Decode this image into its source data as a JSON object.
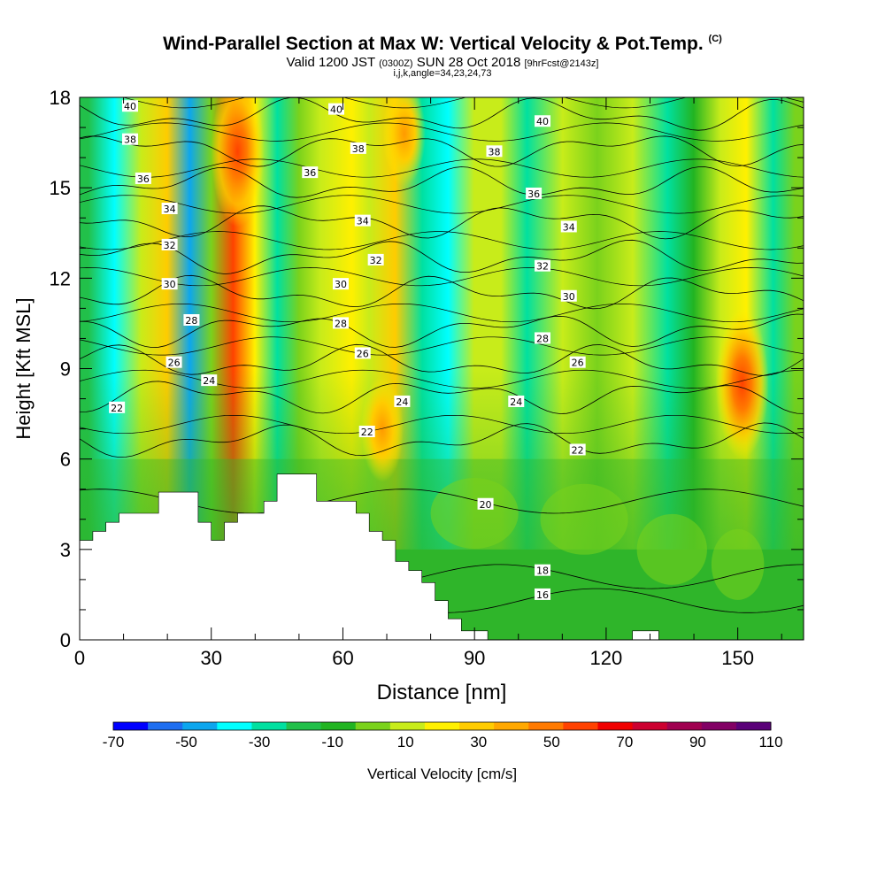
{
  "header": {
    "title": "Wind-Parallel Section at Max W: Vertical Velocity & Pot.Temp.",
    "title_units": "(C)",
    "valid_main_1": "Valid 1200 JST",
    "valid_utc": "(0300Z)",
    "valid_main_2": "SUN 28 Oct 2018",
    "forecast": "[9hrFcst@2143z]",
    "indices": "i,j,k,angle=34,23,24,73"
  },
  "chart_data": {
    "type": "heatmap",
    "xlabel": "Distance [nm]",
    "ylabel": "Height [Kft MSL]",
    "xlim": [
      0,
      165
    ],
    "ylim": [
      0,
      18
    ],
    "x_ticks": [
      0,
      30,
      60,
      90,
      120,
      150
    ],
    "x_ticklabels": [
      "0",
      "30",
      "60",
      "90",
      "120",
      "150"
    ],
    "y_ticks": [
      0,
      3,
      6,
      9,
      12,
      15,
      18
    ],
    "y_ticklabels": [
      "0",
      "3",
      "6",
      "9",
      "12",
      "15",
      "18"
    ],
    "colorbar": {
      "label": "Vertical Velocity [cm/s]",
      "levels": [
        -70,
        -60,
        -50,
        -40,
        -30,
        -20,
        -10,
        0,
        10,
        20,
        30,
        40,
        50,
        60,
        70,
        80,
        90,
        100,
        110
      ],
      "ticklabels": [
        "-70",
        "-50",
        "-30",
        "-10",
        "10",
        "30",
        "50",
        "70",
        "90",
        "110"
      ],
      "colors": [
        "#0000ff",
        "#1e6ef0",
        "#0ca6ee",
        "#00ffff",
        "#00e0a0",
        "#22c04a",
        "#22b422",
        "#7ad21c",
        "#c8ec1a",
        "#fff000",
        "#ffcc00",
        "#ffa800",
        "#ff7a00",
        "#ff4200",
        "#f00000",
        "#cc0030",
        "#a00050",
        "#820064",
        "#5a0078"
      ]
    },
    "vertical_velocity_columns": [
      {
        "x": 2,
        "w": -20
      },
      {
        "x": 8,
        "w": -38
      },
      {
        "x": 14,
        "w": 18
      },
      {
        "x": 20,
        "w": 35
      },
      {
        "x": 25,
        "w": -42
      },
      {
        "x": 30,
        "w": 8
      },
      {
        "x": 35,
        "w": 60
      },
      {
        "x": 40,
        "w": 20
      },
      {
        "x": 45,
        "w": -30
      },
      {
        "x": 50,
        "w": 0
      },
      {
        "x": 55,
        "w": 10
      },
      {
        "x": 62,
        "w": 28
      },
      {
        "x": 66,
        "w": 15
      },
      {
        "x": 72,
        "w": 35
      },
      {
        "x": 78,
        "w": -22
      },
      {
        "x": 84,
        "w": -38
      },
      {
        "x": 90,
        "w": 10
      },
      {
        "x": 96,
        "w": 18
      },
      {
        "x": 102,
        "w": -25
      },
      {
        "x": 110,
        "w": 12
      },
      {
        "x": 118,
        "w": 0
      },
      {
        "x": 126,
        "w": 10
      },
      {
        "x": 134,
        "w": -22
      },
      {
        "x": 140,
        "w": -5
      },
      {
        "x": 146,
        "w": 12
      },
      {
        "x": 152,
        "w": 25
      },
      {
        "x": 158,
        "w": -28
      },
      {
        "x": 163,
        "w": 5
      }
    ],
    "updraft_cores": [
      {
        "x": 36,
        "y": 16.2,
        "w": 65
      },
      {
        "x": 69,
        "y": 7.0,
        "w": 45
      },
      {
        "x": 74,
        "y": 16.8,
        "w": 40
      },
      {
        "x": 151,
        "y": 8.5,
        "w": 55
      }
    ],
    "terrain": [
      [
        0,
        3.3
      ],
      [
        3,
        3.3
      ],
      [
        3,
        3.6
      ],
      [
        6,
        3.6
      ],
      [
        6,
        3.9
      ],
      [
        9,
        3.9
      ],
      [
        9,
        4.2
      ],
      [
        18,
        4.2
      ],
      [
        18,
        4.9
      ],
      [
        27,
        4.9
      ],
      [
        27,
        3.9
      ],
      [
        30,
        3.9
      ],
      [
        30,
        3.3
      ],
      [
        33,
        3.3
      ],
      [
        33,
        3.9
      ],
      [
        36,
        3.9
      ],
      [
        36,
        4.2
      ],
      [
        42,
        4.2
      ],
      [
        42,
        4.6
      ],
      [
        45,
        4.6
      ],
      [
        45,
        5.5
      ],
      [
        54,
        5.5
      ],
      [
        54,
        4.6
      ],
      [
        63,
        4.6
      ],
      [
        63,
        4.2
      ],
      [
        66,
        4.2
      ],
      [
        66,
        3.6
      ],
      [
        69,
        3.6
      ],
      [
        69,
        3.3
      ],
      [
        72,
        3.3
      ],
      [
        72,
        2.6
      ],
      [
        75,
        2.6
      ],
      [
        75,
        2.3
      ],
      [
        78,
        2.3
      ],
      [
        78,
        1.9
      ],
      [
        81,
        1.9
      ],
      [
        81,
        1.3
      ],
      [
        84,
        1.3
      ],
      [
        84,
        0.7
      ],
      [
        87,
        0.7
      ],
      [
        87,
        0.3
      ],
      [
        93,
        0.3
      ],
      [
        93,
        0.0
      ],
      [
        126,
        0.0
      ],
      [
        126,
        0.3
      ],
      [
        132,
        0.3
      ],
      [
        132,
        0.0
      ],
      [
        165,
        0.0
      ]
    ],
    "potential_temperature_contours": {
      "levels": [
        16,
        18,
        20,
        22,
        24,
        26,
        28,
        30,
        32,
        34,
        36,
        38,
        40
      ],
      "label_positions": [
        {
          "label": "40",
          "x": 11.5,
          "y": 17.7
        },
        {
          "label": "38",
          "x": 11.5,
          "y": 16.6
        },
        {
          "label": "36",
          "x": 14.5,
          "y": 15.3
        },
        {
          "label": "34",
          "x": 20.5,
          "y": 14.3
        },
        {
          "label": "32",
          "x": 20.5,
          "y": 13.1
        },
        {
          "label": "30",
          "x": 20.5,
          "y": 11.8
        },
        {
          "label": "28",
          "x": 25.5,
          "y": 10.6
        },
        {
          "label": "26",
          "x": 21.5,
          "y": 9.2
        },
        {
          "label": "24",
          "x": 29.5,
          "y": 8.6
        },
        {
          "label": "22",
          "x": 8.5,
          "y": 7.7
        },
        {
          "label": "40",
          "x": 58.5,
          "y": 17.6
        },
        {
          "label": "38",
          "x": 63.5,
          "y": 16.3
        },
        {
          "label": "36",
          "x": 52.5,
          "y": 15.5
        },
        {
          "label": "34",
          "x": 64.5,
          "y": 13.9
        },
        {
          "label": "32",
          "x": 67.5,
          "y": 12.6
        },
        {
          "label": "30",
          "x": 59.5,
          "y": 11.8
        },
        {
          "label": "28",
          "x": 59.5,
          "y": 10.5
        },
        {
          "label": "26",
          "x": 64.5,
          "y": 9.5
        },
        {
          "label": "24",
          "x": 73.5,
          "y": 7.9
        },
        {
          "label": "22",
          "x": 65.5,
          "y": 6.9
        },
        {
          "label": "40",
          "x": 105.5,
          "y": 17.2
        },
        {
          "label": "38",
          "x": 94.5,
          "y": 16.2
        },
        {
          "label": "36",
          "x": 103.5,
          "y": 14.8
        },
        {
          "label": "34",
          "x": 111.5,
          "y": 13.7
        },
        {
          "label": "32",
          "x": 105.5,
          "y": 12.4
        },
        {
          "label": "30",
          "x": 111.5,
          "y": 11.4
        },
        {
          "label": "28",
          "x": 105.5,
          "y": 10.0
        },
        {
          "label": "26",
          "x": 113.5,
          "y": 9.2
        },
        {
          "label": "24",
          "x": 99.5,
          "y": 7.9
        },
        {
          "label": "22",
          "x": 113.5,
          "y": 6.3
        },
        {
          "label": "20",
          "x": 92.5,
          "y": 4.5
        },
        {
          "label": "18",
          "x": 105.5,
          "y": 2.3
        },
        {
          "label": "16",
          "x": 105.5,
          "y": 1.5
        }
      ]
    }
  }
}
